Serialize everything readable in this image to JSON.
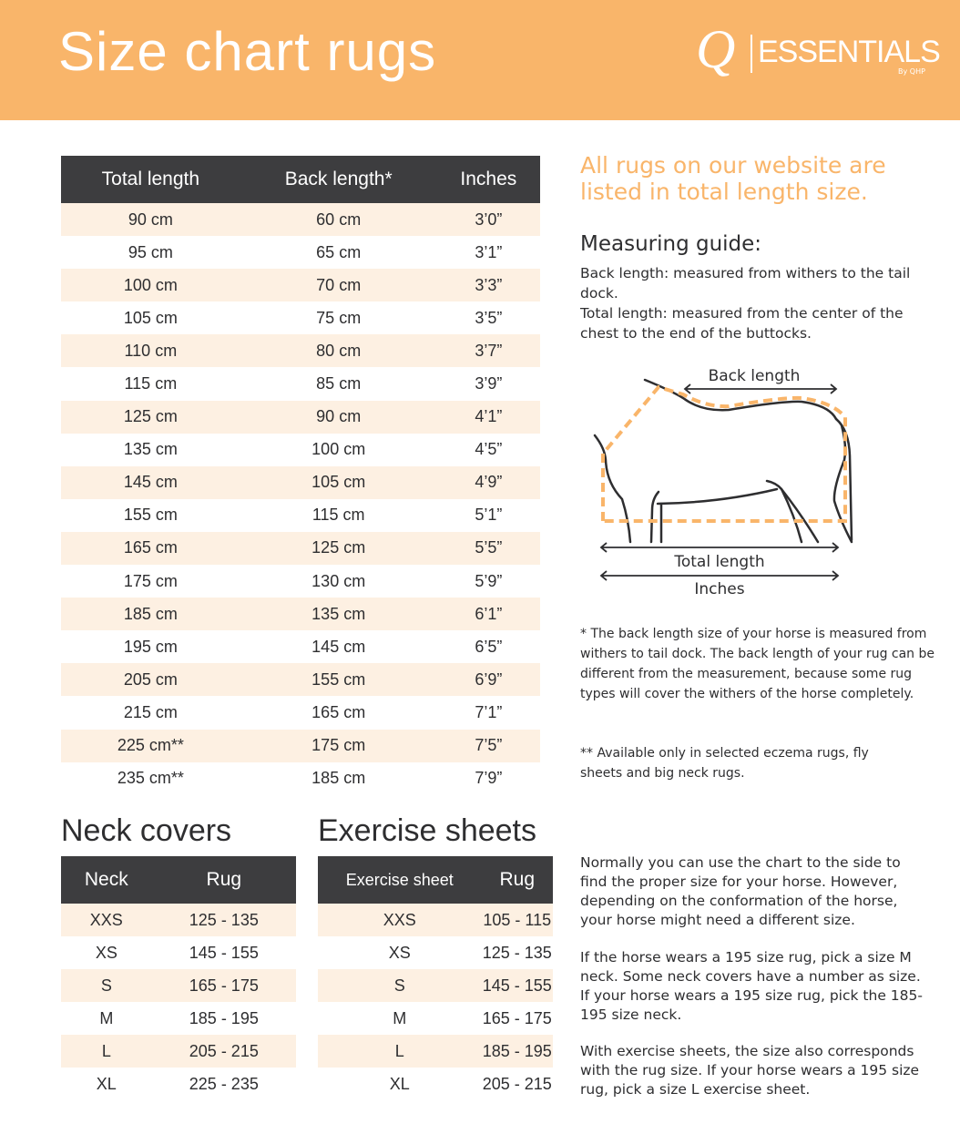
{
  "header": {
    "title": "Size chart rugs",
    "logo_text": "Q ESSENTIALS By QHP",
    "color": "#f9b56a"
  },
  "rugs_table": {
    "headers": [
      "Total length",
      "Back length*",
      "Inches"
    ],
    "rows": [
      [
        "90 cm",
        "60 cm",
        "3’0”"
      ],
      [
        "95 cm",
        "65 cm",
        "3’1”"
      ],
      [
        "100 cm",
        "70 cm",
        "3’3”"
      ],
      [
        "105 cm",
        "75 cm",
        "3’5”"
      ],
      [
        "110 cm",
        "80 cm",
        "3’7”"
      ],
      [
        "115 cm",
        "85 cm",
        "3’9”"
      ],
      [
        "125 cm",
        "90 cm",
        "4’1”"
      ],
      [
        "135 cm",
        "100 cm",
        "4’5”"
      ],
      [
        "145 cm",
        "105 cm",
        "4’9”"
      ],
      [
        "155 cm",
        "115 cm",
        "5’1”"
      ],
      [
        "165 cm",
        "125 cm",
        "5’5”"
      ],
      [
        "175 cm",
        "130 cm",
        "5’9”"
      ],
      [
        "185 cm",
        "135 cm",
        "6’1”"
      ],
      [
        "195 cm",
        "145 cm",
        "6’5”"
      ],
      [
        "205 cm",
        "155 cm",
        "6’9”"
      ],
      [
        "215 cm",
        "165 cm",
        "7’1”"
      ],
      [
        "225 cm**",
        "175 cm",
        "7’5”"
      ],
      [
        "235 cm**",
        "185 cm",
        "7’9”"
      ]
    ]
  },
  "neck": {
    "title": "Neck covers",
    "headers": [
      "Neck",
      "Rug"
    ],
    "rows": [
      [
        "XXS",
        "125 - 135"
      ],
      [
        "XS",
        "145 - 155"
      ],
      [
        "S",
        "165 - 175"
      ],
      [
        "M",
        "185 - 195"
      ],
      [
        "L",
        "205 - 215"
      ],
      [
        "XL",
        "225 - 235"
      ]
    ]
  },
  "exercise": {
    "title": "Exercise sheets",
    "headers": [
      "Exercise sheet",
      "Rug"
    ],
    "rows": [
      [
        "XXS",
        "105 - 115"
      ],
      [
        "XS",
        "125 - 135"
      ],
      [
        "S",
        "145 - 155"
      ],
      [
        "M",
        "165 - 175"
      ],
      [
        "L",
        "185 - 195"
      ],
      [
        "XL",
        "205 - 215"
      ]
    ]
  },
  "side": {
    "highlight": "All rugs on our website are listed in total length size.",
    "guide_title": "Measuring guide:",
    "guide_text": [
      "Back length: measured from withers to the tail dock.",
      "Total length: measured from the center of the chest to the end of the buttocks."
    ],
    "diagram": {
      "back": "Back length",
      "total": "Total length",
      "inches": "Inches"
    },
    "footnote1": "* The back length size of your horse is measured from withers to tail dock. The back length of your rug can be different from the measurement, because some rug types will cover the withers of the horse completely.",
    "footnote2": "** Available only in selected eczema rugs, fly sheets and big neck rugs.",
    "para1": "Normally you can use the chart to the side to find the proper size for your horse.  However, depending on the conformation of the horse, your horse might need a different size.",
    "para2": "If the horse wears a 195 size rug, pick a size M neck. Some neck covers have a number as size. If your horse wears a 195 size rug, pick the 185-195 size neck.",
    "para3": "With exercise sheets, the size also corresponds with the rug size. If your horse wears a 195 size rug, pick a size L exercise sheet."
  }
}
